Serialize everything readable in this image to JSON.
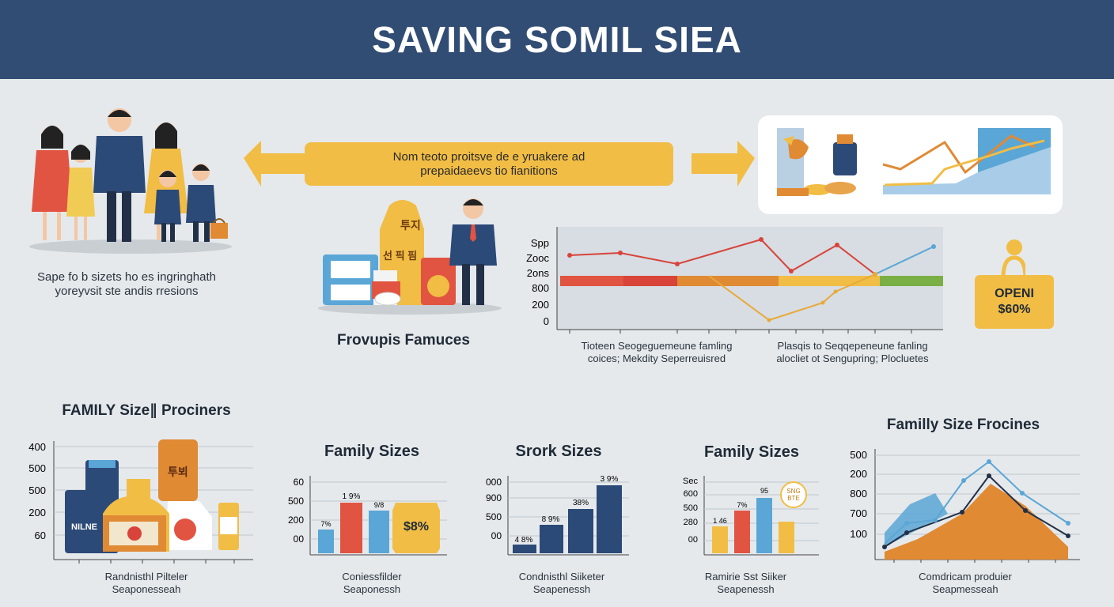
{
  "header": {
    "title": "SAVING SOMIL SIEA"
  },
  "family_caption": {
    "line1": "Sape fo b sizets ho es ingringhath",
    "line2": "yoreyvsit ste andis rresions"
  },
  "arrow": {
    "line1": "Nom teoto proitsve de e yruakere ad",
    "line2": "prepaidaeevs tio fianitions"
  },
  "products": {
    "title": "Frovupis Famuces",
    "bag_tall_label": "투지",
    "bag_mid_label": "선 픽 핌"
  },
  "line_chart": {
    "y_ticks": [
      "Spp",
      "Zooc",
      "2ons",
      "800",
      "200",
      "0"
    ],
    "caption_left": {
      "line1": "Tioteen Seogeguemeune famling",
      "line2": "coices; Mekdity Seperreuisred"
    },
    "caption_right": {
      "line1": "Plasqis to Seqqepeneune fanling",
      "line2": "alocliet ot Sengupring; Plocluetes"
    }
  },
  "badge": {
    "line1": "OPENI",
    "line2": "$60%"
  },
  "bottom": {
    "c1": {
      "title": "FAMILY Size∥ Prociners",
      "y_ticks": [
        "400",
        "500",
        "500",
        "200",
        "60"
      ],
      "jar_label": "투뵈",
      "can_label": "NILNE",
      "caption1": "Randnisthl Pilteler",
      "caption2": "Seaponesseah"
    },
    "c2": {
      "title": "Family Sizes",
      "y_ticks": [
        "60",
        "500",
        "200",
        "00"
      ],
      "labels": [
        "7%",
        "1 9%",
        "9/8"
      ],
      "bag_label": "$8%",
      "caption1": "Coniessfilder",
      "caption2": "Seaponessh"
    },
    "c3": {
      "title": "Srork Sizes",
      "y_ticks": [
        "000",
        "900",
        "500",
        "00"
      ],
      "labels": [
        "4 8%",
        "8 9%",
        "38%",
        "3 9%"
      ],
      "caption1": "Condnisthl Siiketer",
      "caption2": "Seapenessh"
    },
    "c4": {
      "title": "Family Sizes",
      "y_ticks": [
        "Sec",
        "600",
        "500",
        "280",
        "00"
      ],
      "labels": [
        "1 46",
        "7%",
        "95"
      ],
      "bubble_label1": "SNG",
      "bubble_label2": "BTE",
      "caption1": "Ramirie Sst Siiker",
      "caption2": "Seapenessh"
    },
    "c5": {
      "title": "Familly Size Frocines",
      "y_ticks": [
        "500",
        "200",
        "800",
        "700",
        "100"
      ],
      "caption1": "Comdricam produier",
      "caption2": "Seapmesseah"
    }
  },
  "colors": {
    "header": "#324d74",
    "navy": "#2c4a77",
    "yellow": "#f1bd45",
    "red": "#e0483d",
    "orange": "#e08a34",
    "blue": "#5aa6d6",
    "green": "#7aaf45"
  }
}
